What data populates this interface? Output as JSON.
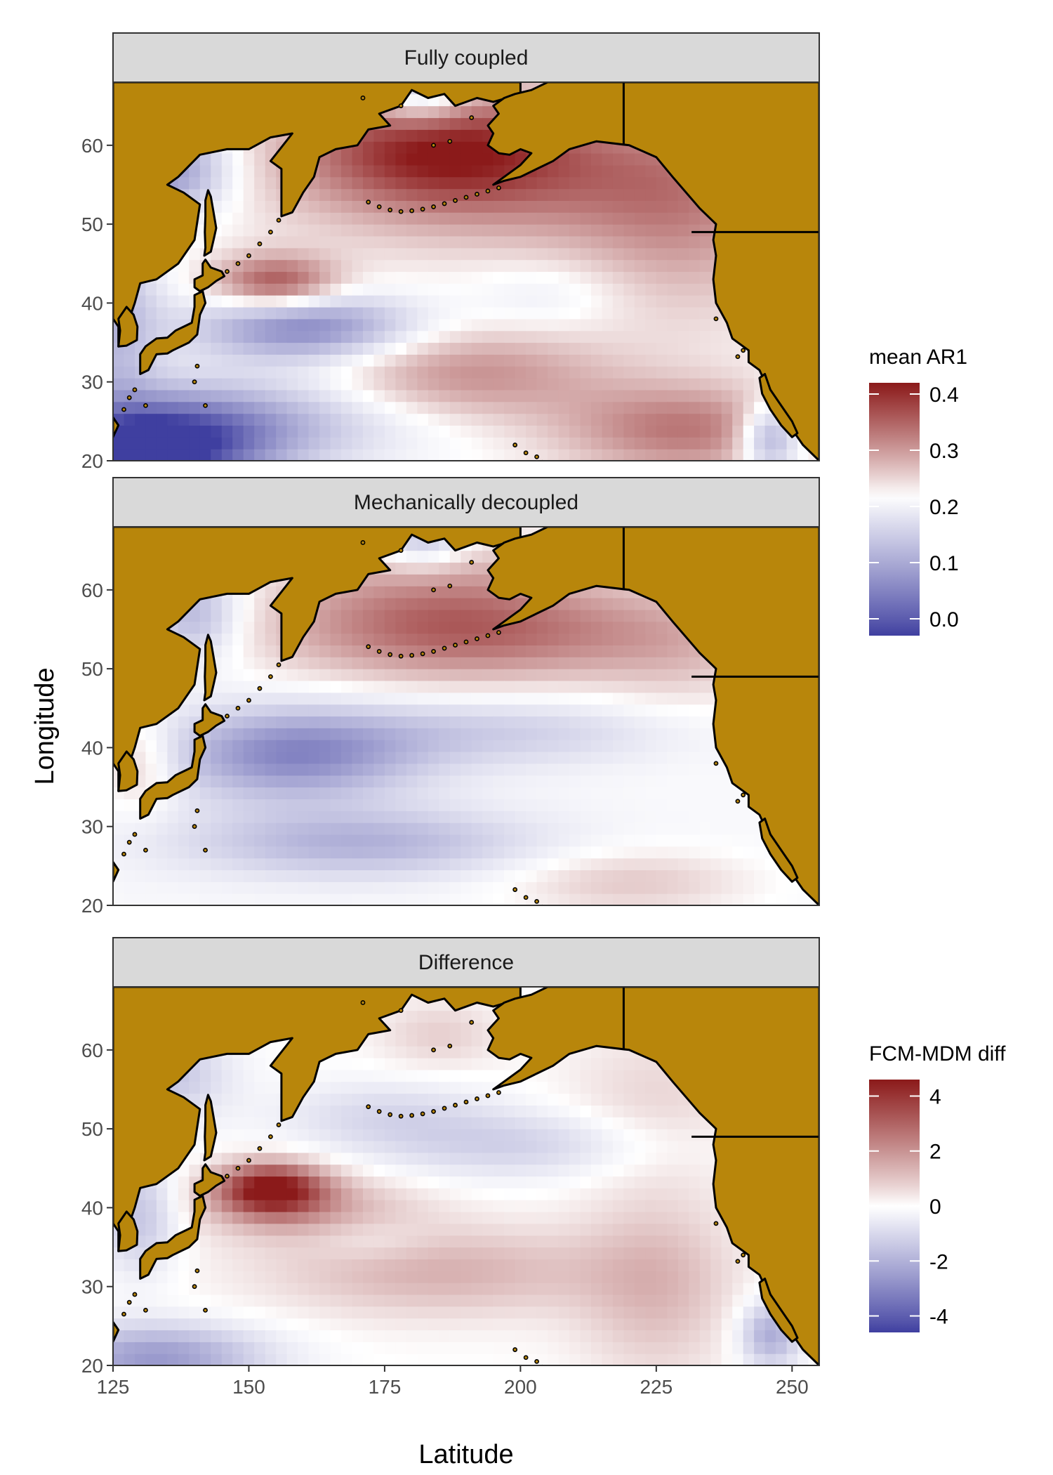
{
  "figure": {
    "xlabel": "Latitude",
    "ylabel": "Longitude",
    "colors": {
      "land": "#B8860B",
      "strip": "#D9D9D9",
      "low": "#3F3FA0",
      "mid": "#FFFFFF",
      "high": "#8B1A1A",
      "coastline": "#000000"
    }
  },
  "chart_data": [
    {
      "type": "heatmap",
      "panel": "Fully coupled",
      "xlim": [
        125,
        255
      ],
      "ylim": [
        20,
        68
      ],
      "x_ticks": [
        125,
        150,
        175,
        200,
        225,
        250
      ],
      "y_ticks": [
        20,
        30,
        40,
        50,
        60
      ],
      "legend": {
        "title": "mean AR1",
        "min": -0.03,
        "max": 0.42,
        "midpoint": 0.22,
        "ticks": [
          "0.0",
          "0.1",
          "0.2",
          "0.3",
          "0.4"
        ],
        "tick_values": [
          0.0,
          0.1,
          0.2,
          0.3,
          0.4
        ]
      },
      "base": 0.22,
      "blobs": [
        {
          "lon": 185,
          "lat": 60,
          "v": 0.16,
          "sx": 18,
          "sy": 5
        },
        {
          "lon": 200,
          "lat": 55,
          "v": 0.08,
          "sx": 30,
          "sy": 6
        },
        {
          "lon": 230,
          "lat": 52,
          "v": 0.07,
          "sx": 14,
          "sy": 10
        },
        {
          "lon": 155,
          "lat": 42.5,
          "v": 0.15,
          "sx": 8,
          "sy": 2.5
        },
        {
          "lon": 160,
          "lat": 37,
          "v": -0.17,
          "sx": 14,
          "sy": 3
        },
        {
          "lon": 190,
          "lat": 31,
          "v": 0.09,
          "sx": 18,
          "sy": 4
        },
        {
          "lon": 230,
          "lat": 24,
          "v": 0.11,
          "sx": 16,
          "sy": 4
        },
        {
          "lon": 132,
          "lat": 21,
          "v": -0.24,
          "sx": 14,
          "sy": 4
        },
        {
          "lon": 145,
          "lat": 25,
          "v": -0.12,
          "sx": 22,
          "sy": 4
        },
        {
          "lon": 135,
          "lat": 57,
          "v": -0.15,
          "sx": 8,
          "sy": 4
        },
        {
          "lon": 125,
          "lat": 38,
          "v": -0.1,
          "sx": 6,
          "sy": 8
        },
        {
          "lon": 205,
          "lat": 41,
          "v": -0.03,
          "sx": 10,
          "sy": 3
        },
        {
          "lon": 246,
          "lat": 23,
          "v": -0.15,
          "sx": 4,
          "sy": 3
        },
        {
          "lon": 182,
          "lat": 67,
          "v": -0.12,
          "sx": 6,
          "sy": 3
        }
      ]
    },
    {
      "type": "heatmap",
      "panel": "Mechanically decoupled",
      "xlim": [
        125,
        255
      ],
      "ylim": [
        20,
        68
      ],
      "x_ticks": [
        125,
        150,
        175,
        200,
        225,
        250
      ],
      "y_ticks": [
        20,
        30,
        40,
        50,
        60
      ],
      "legend_ref": "mean AR1",
      "base": 0.21,
      "blobs": [
        {
          "lon": 185,
          "lat": 58,
          "v": 0.1,
          "sx": 22,
          "sy": 6
        },
        {
          "lon": 200,
          "lat": 54,
          "v": 0.07,
          "sx": 30,
          "sy": 4
        },
        {
          "lon": 230,
          "lat": 52,
          "v": 0.03,
          "sx": 12,
          "sy": 8
        },
        {
          "lon": 158,
          "lat": 39,
          "v": -0.15,
          "sx": 16,
          "sy": 4
        },
        {
          "lon": 195,
          "lat": 42,
          "v": -0.06,
          "sx": 25,
          "sy": 3
        },
        {
          "lon": 170,
          "lat": 28,
          "v": -0.1,
          "sx": 22,
          "sy": 3
        },
        {
          "lon": 220,
          "lat": 23,
          "v": 0.05,
          "sx": 16,
          "sy": 3
        },
        {
          "lon": 130,
          "lat": 38,
          "v": 0.06,
          "sx": 5,
          "sy": 4
        },
        {
          "lon": 140,
          "lat": 57,
          "v": -0.1,
          "sx": 6,
          "sy": 4
        },
        {
          "lon": 182,
          "lat": 67,
          "v": -0.1,
          "sx": 6,
          "sy": 3
        }
      ]
    },
    {
      "type": "heatmap",
      "panel": "Difference",
      "xlim": [
        125,
        255
      ],
      "ylim": [
        20,
        68
      ],
      "x_ticks": [
        125,
        150,
        175,
        200,
        225,
        250
      ],
      "y_ticks": [
        20,
        30,
        40,
        50,
        60
      ],
      "legend": {
        "title": "FCM-MDM diff",
        "min": -4.6,
        "max": 4.6,
        "midpoint": 0,
        "ticks": [
          "-4",
          "-2",
          "0",
          "2",
          "4"
        ],
        "tick_values": [
          -4,
          -2,
          0,
          2,
          4
        ]
      },
      "base": 0,
      "blobs": [
        {
          "lon": 154,
          "lat": 42.5,
          "v": 4.4,
          "sx": 7,
          "sy": 2.3
        },
        {
          "lon": 160,
          "lat": 40,
          "v": 1.5,
          "sx": 14,
          "sy": 3
        },
        {
          "lon": 185,
          "lat": 32,
          "v": 1.4,
          "sx": 22,
          "sy": 4
        },
        {
          "lon": 225,
          "lat": 30,
          "v": 1.2,
          "sx": 10,
          "sy": 8
        },
        {
          "lon": 225,
          "lat": 53,
          "v": 0.7,
          "sx": 12,
          "sy": 7
        },
        {
          "lon": 185,
          "lat": 62,
          "v": 0.8,
          "sx": 8,
          "sy": 3
        },
        {
          "lon": 133,
          "lat": 21,
          "v": -2.6,
          "sx": 14,
          "sy": 3
        },
        {
          "lon": 200,
          "lat": 48,
          "v": -1.2,
          "sx": 20,
          "sy": 3
        },
        {
          "lon": 175,
          "lat": 52,
          "v": -0.9,
          "sx": 14,
          "sy": 3
        },
        {
          "lon": 246,
          "lat": 24,
          "v": -2.2,
          "sx": 4,
          "sy": 3
        },
        {
          "lon": 135,
          "lat": 57,
          "v": -1.5,
          "sx": 8,
          "sy": 4
        },
        {
          "lon": 130,
          "lat": 39,
          "v": -1.6,
          "sx": 5,
          "sy": 5
        },
        {
          "lon": 172,
          "lat": 36,
          "v": -0.6,
          "sx": 8,
          "sy": 2
        }
      ]
    }
  ]
}
